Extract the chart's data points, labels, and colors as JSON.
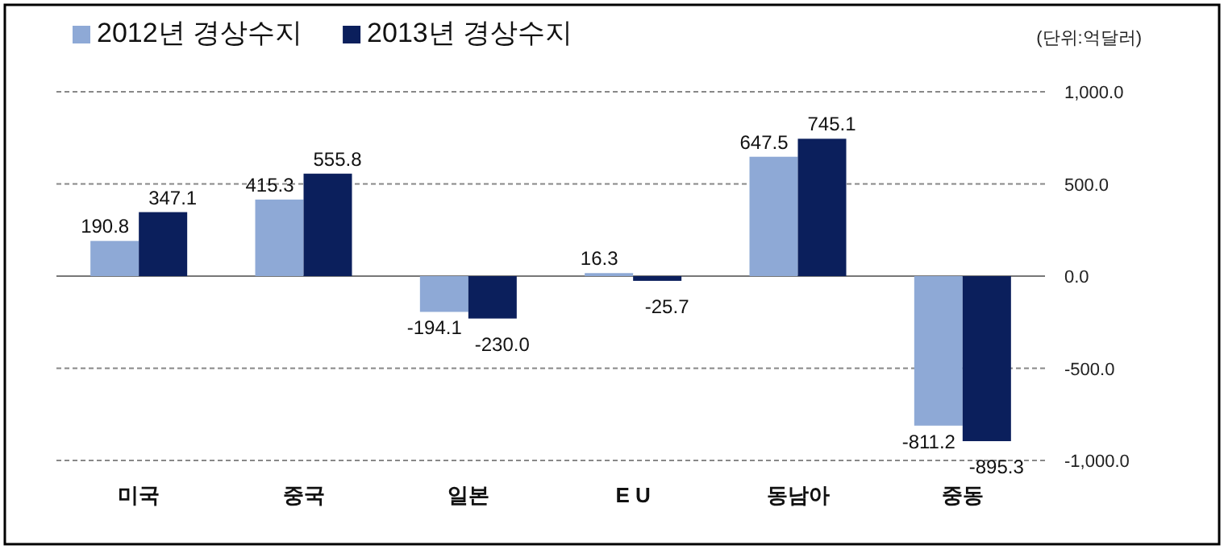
{
  "chart_data": {
    "type": "bar",
    "categories": [
      "미국",
      "중국",
      "일본",
      "E U",
      "동남아",
      "중동"
    ],
    "series": [
      {
        "name": "2012년 경상수지",
        "color": "#8ea9d6",
        "values": [
          190.8,
          415.3,
          -194.1,
          16.3,
          647.5,
          -811.2
        ],
        "value_labels": [
          "190.8",
          "415.3",
          "-194.1",
          "16.3",
          "647.5",
          "-811.2"
        ]
      },
      {
        "name": "2013년 경상수지",
        "color": "#0b1f5c",
        "values": [
          347.1,
          555.8,
          -230.0,
          -25.7,
          745.1,
          -895.3
        ],
        "value_labels": [
          "347.1",
          "555.8",
          "-230.0",
          "-25.7",
          "745.1",
          "-895.3"
        ]
      }
    ],
    "ylim": [
      -1000,
      1000
    ],
    "yticks": [
      {
        "value": 1000,
        "label": "1,000.0"
      },
      {
        "value": 500,
        "label": "500.0"
      },
      {
        "value": 0,
        "label": "0.0"
      },
      {
        "value": -500,
        "label": "-500.0"
      },
      {
        "value": -1000,
        "label": "-1,000.0"
      }
    ],
    "grid": "y",
    "legend": "top left",
    "annotations": [
      "(단위:억달러)"
    ]
  }
}
